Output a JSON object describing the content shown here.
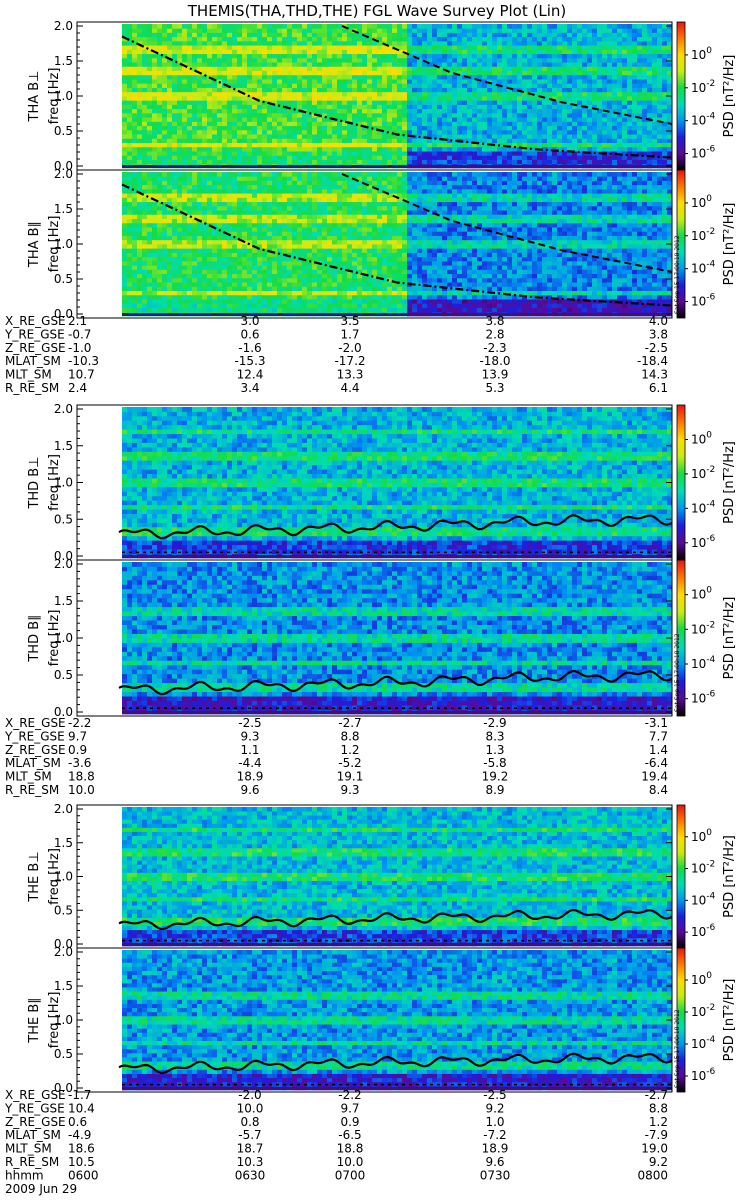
{
  "chart_data": {
    "type": "heatmap",
    "title": "THEMIS(THA,THD,THE) FGL Wave Survey Plot (Lin)",
    "time_axis": {
      "label": "hhmm",
      "ticks": [
        "0600",
        "0630",
        "0700",
        "0730",
        "0800"
      ],
      "date": "2009 Jun 29",
      "range": [
        "0600",
        "0800"
      ]
    },
    "freq_axis": {
      "ylim": [
        0,
        2.0
      ],
      "ticks": [
        "0.0",
        "0.5",
        "1.0",
        "1.5",
        "2.0"
      ]
    },
    "colorbar": {
      "scale": "log",
      "range": [
        1e-07,
        100.0
      ],
      "ticks": [
        {
          "base": "10",
          "exp": "0"
        },
        {
          "base": "10",
          "exp": "-2"
        },
        {
          "base": "10",
          "exp": "-4"
        },
        {
          "base": "10",
          "exp": "-6"
        }
      ],
      "colors": [
        "#000000",
        "#5a0a96",
        "#1e1edc",
        "#0096f0",
        "#00dcb4",
        "#14dc46",
        "#c8eb14",
        "#ffdc00",
        "#ff7800",
        "#e61414"
      ]
    },
    "stamp": "Sat Sep 15 17:00:18 2012",
    "panels": [
      {
        "probe": "THA",
        "component": "B⊥",
        "ylabel_probe": "THA B⊥",
        "ylabel_freq": "freq [Hz]",
        "cb_label": "PSD [nT²/Hz]",
        "data_start": 0.0,
        "switch_time": 0.52,
        "before_level": -1.9,
        "after_level": -3.6,
        "bands": [
          0.3,
          1.0,
          1.35,
          1.65
        ],
        "dashdot_curve": [
          [
            0,
            1.85
          ],
          [
            0.25,
            0.93
          ],
          [
            0.5,
            0.45
          ],
          [
            0.75,
            0.24
          ],
          [
            1.0,
            0.12
          ]
        ],
        "dashed_curve": [
          [
            0.4,
            2.0
          ],
          [
            0.6,
            1.33
          ],
          [
            0.8,
            0.91
          ],
          [
            1.0,
            0.6
          ]
        ]
      },
      {
        "probe": "THA",
        "component": "B∥",
        "ylabel_probe": "THA B∥",
        "ylabel_freq": "freq [Hz]",
        "cb_label": "PSD [nT²/Hz]",
        "data_start": 0.0,
        "switch_time": 0.52,
        "before_level": -2.2,
        "after_level": -4.1,
        "bands": [
          0.3,
          1.0,
          1.35,
          1.65
        ],
        "dashdot_curve": [
          [
            0,
            1.85
          ],
          [
            0.25,
            0.93
          ],
          [
            0.5,
            0.45
          ],
          [
            0.75,
            0.24
          ],
          [
            1.0,
            0.12
          ]
        ],
        "dashed_curve": [
          [
            0.4,
            2.0
          ],
          [
            0.6,
            1.33
          ],
          [
            0.8,
            0.91
          ],
          [
            1.0,
            0.6
          ]
        ]
      },
      {
        "probe": "THD",
        "component": "B⊥",
        "ylabel_probe": "THD B⊥",
        "ylabel_freq": "freq [Hz]",
        "cb_label": "PSD [nT²/Hz]",
        "data_start": 0.0,
        "before_level": -3.6,
        "after_level": -3.6,
        "bands": [
          0.35,
          0.67,
          1.0,
          1.35,
          1.68
        ],
        "solid_curve_base": [
          [
            0,
            0.3
          ],
          [
            0.25,
            0.35
          ],
          [
            0.5,
            0.4
          ],
          [
            0.75,
            0.47
          ],
          [
            1.0,
            0.5
          ]
        ]
      },
      {
        "probe": "THD",
        "component": "B∥",
        "ylabel_probe": "THD B∥",
        "ylabel_freq": "freq [Hz]",
        "cb_label": "PSD [nT²/Hz]",
        "data_start": 0.0,
        "before_level": -4.0,
        "after_level": -4.0,
        "bands": [
          0.35,
          0.67,
          1.0,
          1.35
        ],
        "solid_curve_base": [
          [
            0,
            0.3
          ],
          [
            0.25,
            0.35
          ],
          [
            0.5,
            0.4
          ],
          [
            0.75,
            0.47
          ],
          [
            1.0,
            0.5
          ]
        ]
      },
      {
        "probe": "THE",
        "component": "B⊥",
        "ylabel_probe": "THE B⊥",
        "ylabel_freq": "freq [Hz]",
        "cb_label": "PSD [nT²/Hz]",
        "data_start": 0.0,
        "before_level": -3.5,
        "after_level": -3.5,
        "bands": [
          0.35,
          0.67,
          1.0,
          1.35,
          1.68
        ],
        "solid_curve_base": [
          [
            0,
            0.28
          ],
          [
            0.25,
            0.33
          ],
          [
            0.5,
            0.38
          ],
          [
            0.75,
            0.42
          ],
          [
            1.0,
            0.45
          ]
        ]
      },
      {
        "probe": "THE",
        "component": "B∥",
        "ylabel_probe": "THE B∥",
        "ylabel_freq": "freq [Hz]",
        "cb_label": "PSD [nT²/Hz]",
        "data_start": 0.0,
        "before_level": -3.9,
        "after_level": -3.9,
        "bands": [
          0.35,
          0.67,
          1.0,
          1.35
        ],
        "solid_curve_base": [
          [
            0,
            0.28
          ],
          [
            0.25,
            0.33
          ],
          [
            0.5,
            0.38
          ],
          [
            0.75,
            0.42
          ],
          [
            1.0,
            0.45
          ]
        ]
      }
    ],
    "ephemeris": [
      {
        "probe": "THA",
        "rows": [
          {
            "label": "X_RE_GSE",
            "values": [
              "2.1",
              "3.0",
              "3.5",
              "3.8",
              "4.0"
            ]
          },
          {
            "label": "Y_RE_GSE",
            "values": [
              "-0.7",
              "0.6",
              "1.7",
              "2.8",
              "3.8"
            ]
          },
          {
            "label": "Z_RE_GSE",
            "values": [
              "-1.0",
              "-1.6",
              "-2.0",
              "-2.3",
              "-2.5"
            ]
          },
          {
            "label": "MLAT_SM",
            "values": [
              "-10.3",
              "-15.3",
              "-17.2",
              "-18.0",
              "-18.4"
            ]
          },
          {
            "label": "MLT_SM",
            "values": [
              "10.7",
              "12.4",
              "13.3",
              "13.9",
              "14.3"
            ]
          },
          {
            "label": "R_RE_SM",
            "values": [
              "2.4",
              "3.4",
              "4.4",
              "5.3",
              "6.1"
            ]
          }
        ]
      },
      {
        "probe": "THD",
        "rows": [
          {
            "label": "X_RE_GSE",
            "values": [
              "-2.2",
              "-2.5",
              "-2.7",
              "-2.9",
              "-3.1"
            ]
          },
          {
            "label": "Y_RE_GSE",
            "values": [
              "9.7",
              "9.3",
              "8.8",
              "8.3",
              "7.7"
            ]
          },
          {
            "label": "Z_RE_GSE",
            "values": [
              "0.9",
              "1.1",
              "1.2",
              "1.3",
              "1.4"
            ]
          },
          {
            "label": "MLAT_SM",
            "values": [
              "-3.6",
              "-4.4",
              "-5.2",
              "-5.8",
              "-6.4"
            ]
          },
          {
            "label": "MLT_SM",
            "values": [
              "18.8",
              "18.9",
              "19.1",
              "19.2",
              "19.4"
            ]
          },
          {
            "label": "R_RE_SM",
            "values": [
              "10.0",
              "9.6",
              "9.3",
              "8.9",
              "8.4"
            ]
          }
        ]
      },
      {
        "probe": "THE",
        "rows": [
          {
            "label": "X_RE_GSE",
            "values": [
              "-1.7",
              "-2.0",
              "-2.2",
              "-2.5",
              "-2.7"
            ]
          },
          {
            "label": "Y_RE_GSE",
            "values": [
              "10.4",
              "10.0",
              "9.7",
              "9.2",
              "8.8"
            ]
          },
          {
            "label": "Z_RE_GSE",
            "values": [
              "0.6",
              "0.8",
              "0.9",
              "1.0",
              "1.2"
            ]
          },
          {
            "label": "MLAT_SM",
            "values": [
              "-4.9",
              "-5.7",
              "-6.5",
              "-7.2",
              "-7.9"
            ]
          },
          {
            "label": "MLT_SM",
            "values": [
              "18.6",
              "18.7",
              "18.8",
              "18.9",
              "19.0"
            ]
          },
          {
            "label": "R_RE_SM",
            "values": [
              "10.5",
              "10.3",
              "10.0",
              "9.6",
              "9.2"
            ]
          }
        ]
      }
    ]
  }
}
